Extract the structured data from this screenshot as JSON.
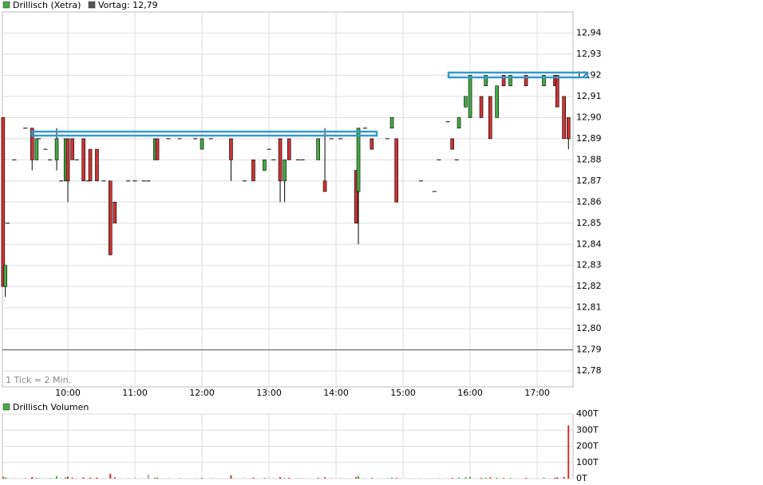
{
  "chart_data": {
    "type": "candlestick",
    "title": "Drillisch (Xetra)",
    "reference": {
      "label": "Vortag: 12,79",
      "value": 12.79,
      "color": "#555555"
    },
    "note": "1 Tick = 2 Min.",
    "up_color": "#44aa44",
    "down_color": "#cc3333",
    "flat_color": "#aaaaaa",
    "x": [
      542,
      544,
      546,
      552,
      562,
      568,
      572,
      574,
      580,
      584,
      590,
      594,
      598,
      600,
      604,
      608,
      614,
      618,
      620,
      626,
      632,
      638,
      642,
      654,
      660,
      668,
      672,
      678,
      680,
      690,
      700,
      714,
      720,
      728,
      746,
      758,
      766,
      776,
      780,
      784,
      790,
      794,
      798,
      806,
      810,
      824,
      830,
      836,
      844,
      858,
      860,
      866,
      872,
      886,
      890,
      894,
      916,
      928,
      932,
      940,
      944,
      948,
      950,
      956,
      960,
      970,
      974,
      978,
      984,
      990,
      996,
      1010,
      1026,
      1036,
      1038,
      1044,
      1048
    ],
    "open": [
      12.9,
      12.82,
      12.85,
      12.88,
      12.895,
      12.895,
      12.88,
      12.89,
      12.885,
      12.88,
      12.88,
      12.87,
      12.87,
      12.89,
      12.89,
      12.88,
      12.89,
      12.87,
      12.885,
      12.885,
      12.87,
      12.87,
      12.86,
      12.87,
      12.87,
      12.87,
      12.87,
      12.88,
      12.89,
      12.89,
      12.89,
      12.89,
      12.885,
      12.89,
      12.89,
      12.87,
      12.88,
      12.875,
      12.885,
      12.88,
      12.89,
      12.87,
      12.89,
      12.88,
      12.88,
      12.88,
      12.87,
      12.89,
      12.89,
      12.875,
      12.865,
      12.895,
      12.89,
      12.89,
      12.895,
      12.89,
      12.87,
      12.865,
      12.88,
      12.898,
      12.89,
      12.88,
      12.895,
      12.905,
      12.9,
      12.91,
      12.915,
      12.91,
      12.9,
      12.92,
      12.915,
      12.92,
      12.915,
      12.92,
      12.92,
      12.91,
      12.9
    ],
    "high": [
      12.9,
      12.83,
      12.85,
      12.88,
      12.895,
      12.895,
      12.89,
      12.89,
      12.885,
      12.88,
      12.895,
      12.87,
      12.89,
      12.89,
      12.89,
      12.88,
      12.89,
      12.87,
      12.885,
      12.885,
      12.87,
      12.87,
      12.86,
      12.87,
      12.87,
      12.87,
      12.87,
      12.89,
      12.89,
      12.89,
      12.89,
      12.89,
      12.89,
      12.89,
      12.89,
      12.87,
      12.88,
      12.88,
      12.885,
      12.88,
      12.89,
      12.88,
      12.89,
      12.88,
      12.88,
      12.89,
      12.895,
      12.89,
      12.89,
      12.875,
      12.895,
      12.895,
      12.89,
      12.89,
      12.9,
      12.89,
      12.87,
      12.865,
      12.88,
      12.898,
      12.89,
      12.88,
      12.9,
      12.91,
      12.92,
      12.91,
      12.92,
      12.91,
      12.915,
      12.92,
      12.92,
      12.92,
      12.92,
      12.92,
      12.92,
      12.91,
      12.9
    ],
    "low": [
      12.82,
      12.815,
      12.85,
      12.88,
      12.895,
      12.875,
      12.88,
      12.89,
      12.885,
      12.88,
      12.875,
      12.87,
      12.87,
      12.86,
      12.88,
      12.88,
      12.87,
      12.87,
      12.87,
      12.87,
      12.87,
      12.835,
      12.85,
      12.87,
      12.87,
      12.87,
      12.87,
      12.88,
      12.88,
      12.89,
      12.89,
      12.89,
      12.885,
      12.89,
      12.87,
      12.87,
      12.87,
      12.875,
      12.885,
      12.88,
      12.86,
      12.86,
      12.88,
      12.88,
      12.88,
      12.88,
      12.865,
      12.89,
      12.89,
      12.85,
      12.84,
      12.895,
      12.885,
      12.89,
      12.895,
      12.86,
      12.87,
      12.865,
      12.88,
      12.898,
      12.885,
      12.88,
      12.895,
      12.905,
      12.9,
      12.9,
      12.915,
      12.89,
      12.9,
      12.915,
      12.915,
      12.915,
      12.915,
      12.915,
      12.905,
      12.89,
      12.885
    ],
    "close": [
      12.82,
      12.83,
      12.85,
      12.88,
      12.895,
      12.88,
      12.89,
      12.89,
      12.885,
      12.88,
      12.89,
      12.87,
      12.89,
      12.87,
      12.88,
      12.88,
      12.87,
      12.87,
      12.87,
      12.87,
      12.87,
      12.835,
      12.85,
      12.87,
      12.87,
      12.87,
      12.87,
      12.89,
      12.88,
      12.89,
      12.89,
      12.89,
      12.89,
      12.89,
      12.88,
      12.87,
      12.87,
      12.88,
      12.885,
      12.88,
      12.87,
      12.88,
      12.88,
      12.88,
      12.88,
      12.89,
      12.865,
      12.89,
      12.89,
      12.85,
      12.895,
      12.895,
      12.885,
      12.89,
      12.9,
      12.86,
      12.87,
      12.865,
      12.88,
      12.898,
      12.885,
      12.88,
      12.9,
      12.91,
      12.92,
      12.9,
      12.92,
      12.89,
      12.915,
      12.915,
      12.92,
      12.915,
      12.92,
      12.915,
      12.905,
      12.89,
      12.89
    ],
    "xlim": [
      541.4,
      1052.1
    ],
    "xticks": [
      {
        "value": 600,
        "label": "10:00"
      },
      {
        "value": 660,
        "label": "11:00"
      },
      {
        "value": 720,
        "label": "12:00"
      },
      {
        "value": 780,
        "label": "13:00"
      },
      {
        "value": 840,
        "label": "14:00"
      },
      {
        "value": 900,
        "label": "15:00"
      },
      {
        "value": 960,
        "label": "16:00"
      },
      {
        "value": 1020,
        "label": "17:00"
      }
    ],
    "ylim": [
      12.7725,
      12.95
    ],
    "yticks": [
      {
        "value": 12.78,
        "label": "12,78"
      },
      {
        "value": 12.79,
        "label": "12,79"
      },
      {
        "value": 12.8,
        "label": "12,80"
      },
      {
        "value": 12.81,
        "label": "12,81"
      },
      {
        "value": 12.82,
        "label": "12,82"
      },
      {
        "value": 12.83,
        "label": "12,83"
      },
      {
        "value": 12.84,
        "label": "12,84"
      },
      {
        "value": 12.85,
        "label": "12,85"
      },
      {
        "value": 12.86,
        "label": "12,86"
      },
      {
        "value": 12.87,
        "label": "12,87"
      },
      {
        "value": 12.88,
        "label": "12,88"
      },
      {
        "value": 12.89,
        "label": "12,89"
      },
      {
        "value": 12.9,
        "label": "12,90"
      },
      {
        "value": 12.91,
        "label": "12,91"
      },
      {
        "value": 12.92,
        "label": "12,92"
      },
      {
        "value": 12.93,
        "label": "12,93"
      },
      {
        "value": 12.94,
        "label": "12,94"
      }
    ],
    "grid": true,
    "volume": {
      "title": "Drillisch Volumen",
      "values": [
        10000,
        8000,
        2000,
        3000,
        4000,
        10000,
        5000,
        3000,
        3000,
        4000,
        15000,
        3000,
        8000,
        12000,
        6000,
        3000,
        8000,
        2000,
        6000,
        7000,
        3000,
        30000,
        8000,
        3000,
        4000,
        3000,
        25000,
        6000,
        5000,
        3000,
        4000,
        3000,
        5000,
        3000,
        20000,
        3000,
        6000,
        5000,
        3000,
        3000,
        10000,
        4000,
        5000,
        3000,
        3000,
        6000,
        8000,
        3000,
        3000,
        10000,
        15000,
        3000,
        4000,
        3000,
        6000,
        5000,
        2000,
        2000,
        3000,
        3000,
        5000,
        2000,
        6000,
        8000,
        10000,
        5000,
        6000,
        8000,
        5000,
        4000,
        4000,
        5000,
        5000,
        6000,
        8000,
        10000,
        330000
      ],
      "ylim": [
        0,
        400000
      ],
      "yticks": [
        {
          "value": 0,
          "label": "0T"
        },
        {
          "value": 100000,
          "label": "100T"
        },
        {
          "value": 200000,
          "label": "200T"
        },
        {
          "value": 300000,
          "label": "300T"
        },
        {
          "value": 400000,
          "label": "400T"
        }
      ]
    }
  }
}
